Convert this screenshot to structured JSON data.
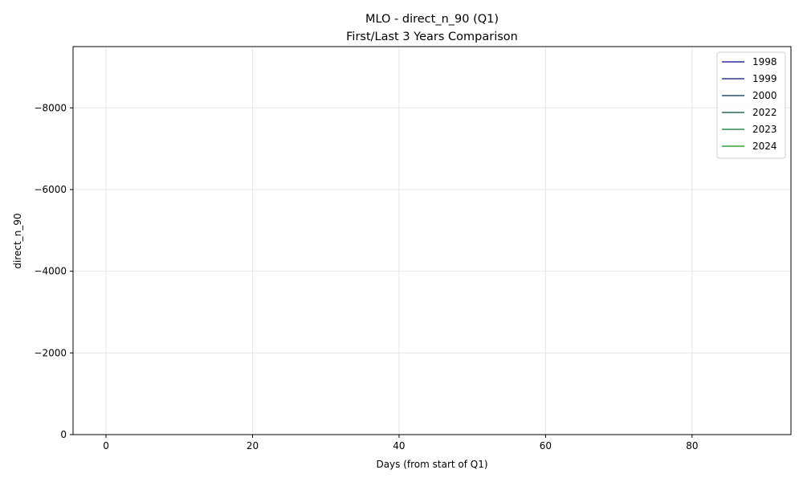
{
  "chart_data": {
    "type": "line",
    "title": "MLO - direct_n_90 (Q1)",
    "subtitle": "First/Last 3 Years Comparison",
    "xlabel": "Days (from start of Q1)",
    "ylabel": "direct_n_90",
    "xlim": [
      -4.5,
      93.5
    ],
    "ylim": [
      0,
      -9500
    ],
    "y_inverted": true,
    "xticks": [
      0,
      20,
      40,
      60,
      80
    ],
    "xtick_labels": [
      "0",
      "20",
      "40",
      "60",
      "80"
    ],
    "yticks": [
      0,
      -2000,
      -4000,
      -6000,
      -8000
    ],
    "ytick_labels": [
      "0",
      "−2000",
      "−4000",
      "−6000",
      "−8000"
    ],
    "grid": true,
    "legend_position": "top-right",
    "series": [
      {
        "name": "1998",
        "color": "#2c2ca0",
        "x": [],
        "y": []
      },
      {
        "name": "1999",
        "color": "#2c3d86",
        "x": [],
        "y": []
      },
      {
        "name": "2000",
        "color": "#2a5068",
        "x": [],
        "y": []
      },
      {
        "name": "2022",
        "color": "#2a6e54",
        "x": [],
        "y": []
      },
      {
        "name": "2023",
        "color": "#2e8a48",
        "x": [],
        "y": []
      },
      {
        "name": "2024",
        "color": "#37a43a",
        "x": [],
        "y": []
      }
    ]
  }
}
